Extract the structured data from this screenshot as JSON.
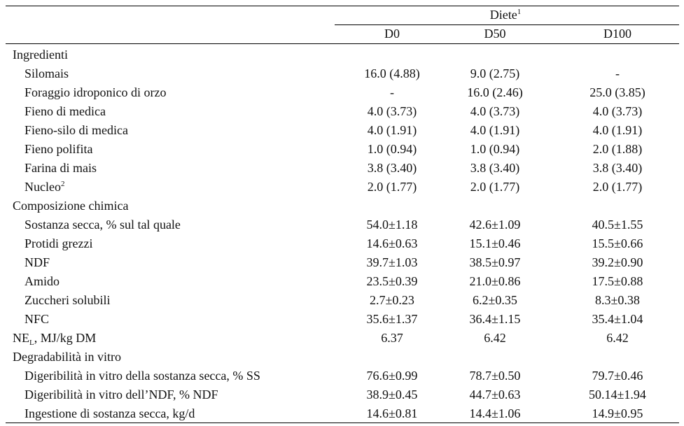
{
  "table": {
    "group": {
      "text": "Diete",
      "sup": "1"
    },
    "columns": [
      "D0",
      "D50",
      "D100"
    ],
    "sections": [
      {
        "label": "Ingredienti",
        "items": [
          {
            "label": "Silomais",
            "cells": [
              "16.0 (4.88)",
              "9.0 (2.75)",
              "-"
            ]
          },
          {
            "label": "Foraggio idroponico di orzo",
            "cells": [
              "-",
              "16.0 (2.46)",
              "25.0 (3.85)"
            ]
          },
          {
            "label": "Fieno di medica",
            "cells": [
              "4.0 (3.73)",
              "4.0 (3.73)",
              "4.0 (3.73)"
            ]
          },
          {
            "label": "Fieno-silo di medica",
            "cells": [
              "4.0 (1.91)",
              "4.0 (1.91)",
              "4.0 (1.91)"
            ]
          },
          {
            "label": "Fieno polifita",
            "cells": [
              "1.0 (0.94)",
              "1.0 (0.94)",
              "2.0 (1.88)"
            ]
          },
          {
            "label": "Farina di mais",
            "cells": [
              "3.8 (3.40)",
              "3.8 (3.40)",
              "3.8 (3.40)"
            ]
          },
          {
            "label": "Nucleo",
            "sup": "2",
            "cells": [
              "2.0 (1.77)",
              "2.0 (1.77)",
              "2.0 (1.77)"
            ]
          }
        ]
      },
      {
        "label": "Composizione chimica",
        "items": [
          {
            "label": "Sostanza secca, % sul tal quale",
            "cells": [
              "54.0±1.18",
              "42.6±1.09",
              "40.5±1.55"
            ]
          },
          {
            "label": "Protidi grezzi",
            "cells": [
              "14.6±0.63",
              "15.1±0.46",
              "15.5±0.66"
            ]
          },
          {
            "label": "NDF",
            "cells": [
              "39.7±1.03",
              "38.5±0.97",
              "39.2±0.90"
            ]
          },
          {
            "label": "Amido",
            "cells": [
              "23.5±0.39",
              "21.0±0.86",
              "17.5±0.88"
            ]
          },
          {
            "label": "Zuccheri solubili",
            "cells": [
              "2.7±0.23",
              "6.2±0.35",
              "8.3±0.38"
            ]
          },
          {
            "label": "NFC",
            "cells": [
              "35.6±1.37",
              "36.4±1.15",
              "35.4±1.04"
            ]
          }
        ]
      },
      {
        "label": "NE",
        "sub": "L",
        "rest": ", MJ/kg DM",
        "cells": [
          "6.37",
          "6.42",
          "6.42"
        ],
        "items": []
      },
      {
        "label": "Degradabilità in vitro",
        "items": [
          {
            "label": "Digeribilità in vitro della sostanza secca, % SS",
            "cells": [
              "76.6±0.99",
              "78.7±0.50",
              "79.7±0.46"
            ]
          },
          {
            "label": "Digeribilità in vitro dell’NDF, % NDF",
            "cells": [
              "38.9±0.45",
              "44.7±0.63",
              "50.14±1.94"
            ]
          },
          {
            "label": "Ingestione di sostanza secca, kg/d",
            "cells": [
              "14.6±0.81",
              "14.4±1.06",
              "14.9±0.95"
            ]
          }
        ]
      }
    ]
  }
}
